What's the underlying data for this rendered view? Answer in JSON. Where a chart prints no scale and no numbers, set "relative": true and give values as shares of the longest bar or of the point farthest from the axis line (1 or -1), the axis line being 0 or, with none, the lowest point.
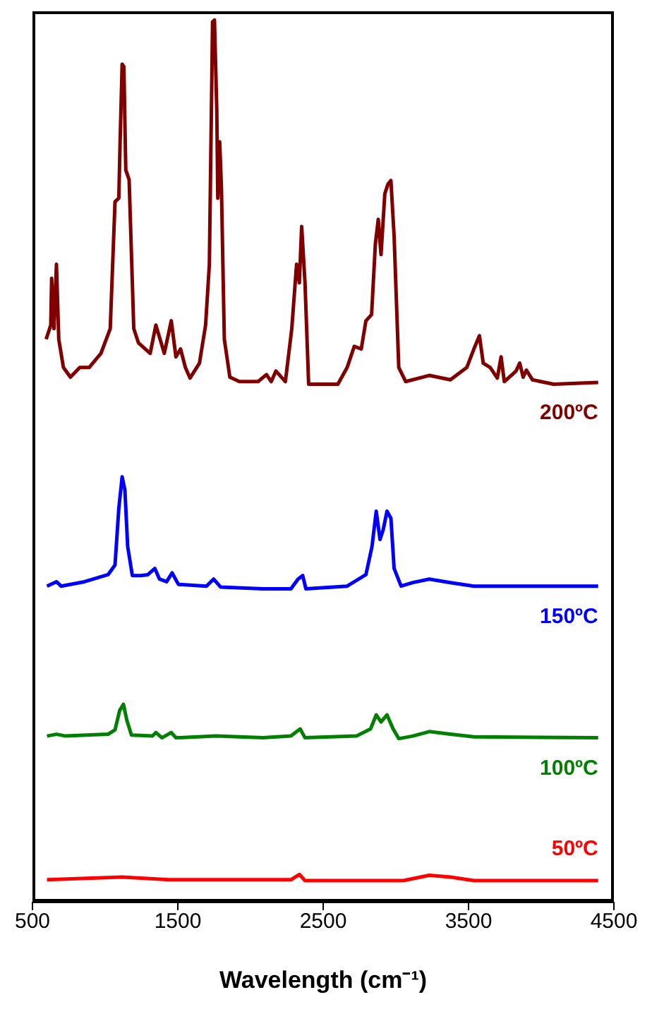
{
  "chart_data": {
    "type": "line",
    "xlabel": "Wavelength (cm⁻¹)",
    "relative": true,
    "xlim": [
      500,
      4500
    ],
    "xticks": [
      500,
      1500,
      2500,
      3500,
      4500
    ],
    "series": [
      {
        "name": "200ºC",
        "color": "#800000",
        "x": [
          594,
          626,
          632,
          648,
          665,
          681,
          713,
          761,
          826,
          890,
          971,
          1035,
          1068,
          1094,
          1103,
          1117,
          1129,
          1142,
          1165,
          1197,
          1229,
          1310,
          1349,
          1407,
          1455,
          1487,
          1519,
          1552,
          1584,
          1649,
          1691,
          1717,
          1739,
          1752,
          1768,
          1775,
          1788,
          1800,
          1820,
          1858,
          1923,
          2052,
          2110,
          2143,
          2175,
          2240,
          2284,
          2317,
          2336,
          2352,
          2375,
          2400,
          2601,
          2665,
          2714,
          2762,
          2794,
          2833,
          2859,
          2879,
          2898,
          2924,
          2946,
          2966,
          2988,
          3020,
          3068,
          3230,
          3375,
          3488,
          3537,
          3575,
          3601,
          3649,
          3698,
          3724,
          3746,
          3827,
          3852,
          3876,
          3898,
          3940,
          4085,
          4392
        ],
        "values": [
          0.638,
          0.654,
          0.707,
          0.65,
          0.723,
          0.638,
          0.606,
          0.595,
          0.606,
          0.606,
          0.622,
          0.65,
          0.794,
          0.798,
          0.862,
          0.95,
          0.947,
          0.83,
          0.819,
          0.65,
          0.634,
          0.622,
          0.654,
          0.622,
          0.659,
          0.618,
          0.627,
          0.606,
          0.594,
          0.611,
          0.654,
          0.723,
          0.998,
          1.0,
          0.899,
          0.798,
          0.862,
          0.81,
          0.638,
          0.595,
          0.59,
          0.59,
          0.598,
          0.59,
          0.602,
          0.59,
          0.65,
          0.723,
          0.702,
          0.766,
          0.702,
          0.587,
          0.587,
          0.606,
          0.63,
          0.627,
          0.659,
          0.666,
          0.746,
          0.774,
          0.734,
          0.803,
          0.814,
          0.818,
          0.755,
          0.606,
          0.59,
          0.597,
          0.592,
          0.606,
          0.627,
          0.642,
          0.611,
          0.606,
          0.594,
          0.618,
          0.59,
          0.602,
          0.611,
          0.595,
          0.603,
          0.592,
          0.587,
          0.589
        ]
      },
      {
        "name": "150ºC",
        "color": "#0000ff",
        "x": [
          600,
          665,
          697,
          858,
          1020,
          1068,
          1094,
          1117,
          1136,
          1155,
          1187,
          1245,
          1294,
          1342,
          1374,
          1423,
          1461,
          1504,
          1697,
          1746,
          1794,
          2085,
          2278,
          2327,
          2359,
          2381,
          2665,
          2794,
          2836,
          2865,
          2891,
          2913,
          2939,
          2966,
          2988,
          3036,
          3117,
          3230,
          3375,
          3537,
          4392
        ],
        "values": [
          0.358,
          0.363,
          0.358,
          0.363,
          0.371,
          0.382,
          0.446,
          0.482,
          0.467,
          0.403,
          0.37,
          0.37,
          0.371,
          0.378,
          0.366,
          0.363,
          0.373,
          0.36,
          0.358,
          0.366,
          0.357,
          0.355,
          0.355,
          0.366,
          0.37,
          0.355,
          0.358,
          0.371,
          0.403,
          0.443,
          0.411,
          0.422,
          0.443,
          0.435,
          0.378,
          0.358,
          0.362,
          0.366,
          0.362,
          0.358,
          0.358
        ]
      },
      {
        "name": "100ºC",
        "color": "#008000",
        "x": [
          600,
          665,
          729,
          1020,
          1068,
          1100,
          1126,
          1149,
          1181,
          1326,
          1349,
          1391,
          1455,
          1487,
          1762,
          2085,
          2278,
          2342,
          2375,
          2730,
          2826,
          2865,
          2898,
          2939,
          2981,
          3020,
          3117,
          3230,
          3375,
          3537,
          4392
        ],
        "values": [
          0.188,
          0.19,
          0.188,
          0.19,
          0.195,
          0.217,
          0.224,
          0.206,
          0.189,
          0.188,
          0.192,
          0.186,
          0.192,
          0.186,
          0.188,
          0.186,
          0.188,
          0.196,
          0.186,
          0.188,
          0.196,
          0.212,
          0.204,
          0.212,
          0.196,
          0.185,
          0.188,
          0.193,
          0.19,
          0.187,
          0.186
        ]
      },
      {
        "name": "50ºC",
        "color": "#ff0000",
        "x": [
          600,
          1117,
          1439,
          2278,
          2336,
          2375,
          3052,
          3230,
          3375,
          3537,
          4392
        ],
        "values": [
          0.025,
          0.028,
          0.025,
          0.025,
          0.031,
          0.024,
          0.024,
          0.03,
          0.028,
          0.024,
          0.024
        ]
      }
    ]
  }
}
